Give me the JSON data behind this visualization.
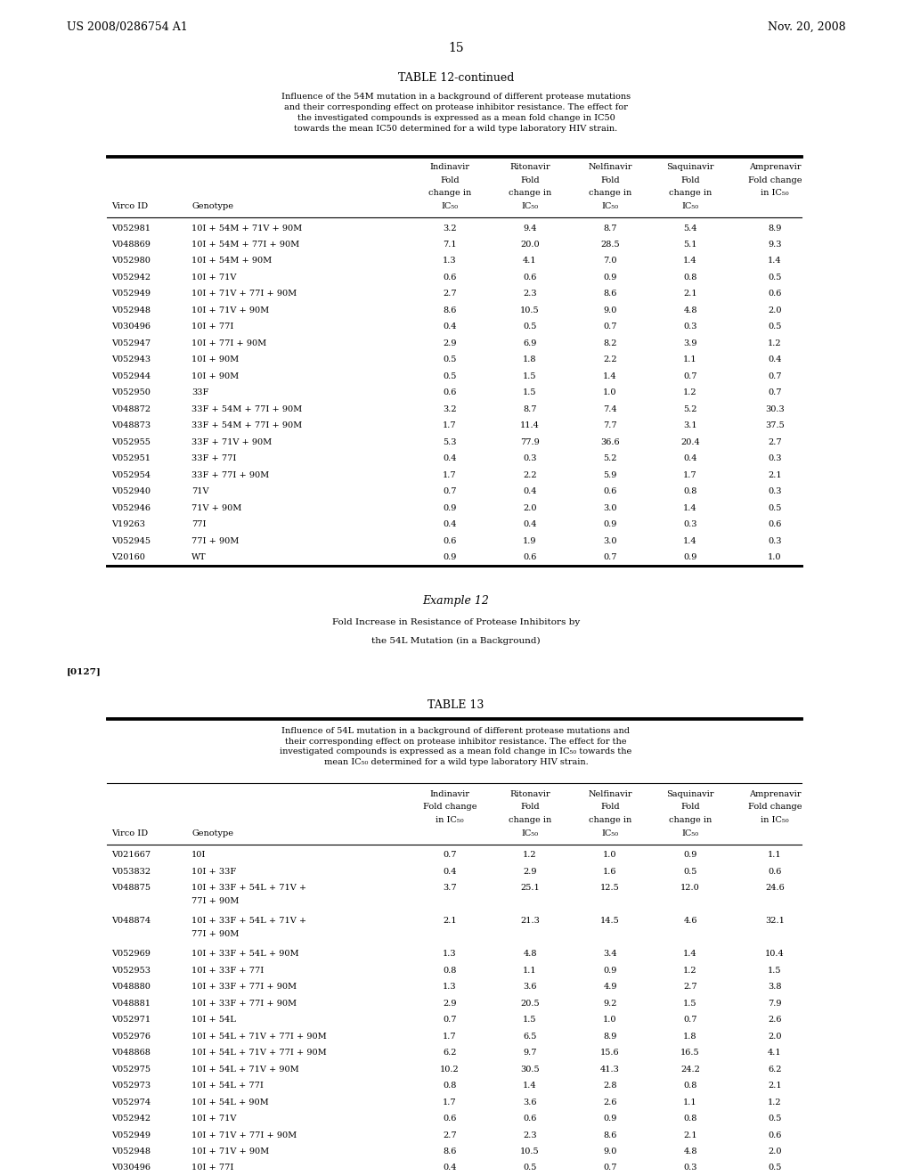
{
  "header_left": "US 2008/0286754 A1",
  "header_right": "Nov. 20, 2008",
  "page_number": "15",
  "table12_title": "TABLE 12-continued",
  "table12_caption": "Influence of the 54M mutation in a background of different protease mutations\nand their corresponding effect on protease inhibitor resistance. The effect for\nthe investigated compounds is expressed as a mean fold change in IC50\ntowards the mean IC50 determined for a wild type laboratory HIV strain.",
  "table12_col_headers": [
    "",
    "",
    "Indinavir\nFold\nchange in\nIC₅₀",
    "Ritonavir\nFold\nchange in\nIC₅₀",
    "Nelfinavir\nFold\nchange in\nIC₅₀",
    "Saquinavir\nFold\nchange in\nIC₅₀",
    "Amprenavir\nFold change\nin IC₅₀"
  ],
  "table12_sub_headers": [
    "Virco ID",
    "Genotype",
    "",
    "",
    "",
    "",
    ""
  ],
  "table12_data": [
    [
      "V052981",
      "10I + 54M + 71V + 90M",
      "3.2",
      "9.4",
      "8.7",
      "5.4",
      "8.9"
    ],
    [
      "V048869",
      "10I + 54M + 77I + 90M",
      "7.1",
      "20.0",
      "28.5",
      "5.1",
      "9.3"
    ],
    [
      "V052980",
      "10I + 54M + 90M",
      "1.3",
      "4.1",
      "7.0",
      "1.4",
      "1.4"
    ],
    [
      "V052942",
      "10I + 71V",
      "0.6",
      "0.6",
      "0.9",
      "0.8",
      "0.5"
    ],
    [
      "V052949",
      "10I + 71V + 77I + 90M",
      "2.7",
      "2.3",
      "8.6",
      "2.1",
      "0.6"
    ],
    [
      "V052948",
      "10I + 71V + 90M",
      "8.6",
      "10.5",
      "9.0",
      "4.8",
      "2.0"
    ],
    [
      "V030496",
      "10I + 77I",
      "0.4",
      "0.5",
      "0.7",
      "0.3",
      "0.5"
    ],
    [
      "V052947",
      "10I + 77I + 90M",
      "2.9",
      "6.9",
      "8.2",
      "3.9",
      "1.2"
    ],
    [
      "V052943",
      "10I + 90M",
      "0.5",
      "1.8",
      "2.2",
      "1.1",
      "0.4"
    ],
    [
      "V052944",
      "10I + 90M",
      "0.5",
      "1.5",
      "1.4",
      "0.7",
      "0.7"
    ],
    [
      "V052950",
      "33F",
      "0.6",
      "1.5",
      "1.0",
      "1.2",
      "0.7"
    ],
    [
      "V048872",
      "33F + 54M + 77I + 90M",
      "3.2",
      "8.7",
      "7.4",
      "5.2",
      "30.3"
    ],
    [
      "V048873",
      "33F + 54M + 77I + 90M",
      "1.7",
      "11.4",
      "7.7",
      "3.1",
      "37.5"
    ],
    [
      "V052955",
      "33F + 71V + 90M",
      "5.3",
      "77.9",
      "36.6",
      "20.4",
      "2.7"
    ],
    [
      "V052951",
      "33F + 77I",
      "0.4",
      "0.3",
      "5.2",
      "0.4",
      "0.3"
    ],
    [
      "V052954",
      "33F + 77I + 90M",
      "1.7",
      "2.2",
      "5.9",
      "1.7",
      "2.1"
    ],
    [
      "V052940",
      "71V",
      "0.7",
      "0.4",
      "0.6",
      "0.8",
      "0.3"
    ],
    [
      "V052946",
      "71V + 90M",
      "0.9",
      "2.0",
      "3.0",
      "1.4",
      "0.5"
    ],
    [
      "V19263",
      "77I",
      "0.4",
      "0.4",
      "0.9",
      "0.3",
      "0.6"
    ],
    [
      "V052945",
      "77I + 90M",
      "0.6",
      "1.9",
      "3.0",
      "1.4",
      "0.3"
    ],
    [
      "V20160",
      "WT",
      "0.9",
      "0.6",
      "0.7",
      "0.9",
      "1.0"
    ]
  ],
  "example12_title": "Example 12",
  "example12_text": "Fold Increase in Resistance of Protease Inhibitors by\nthe 54L Mutation (in a Background)",
  "paragraph_ref": "[0127]",
  "table13_title": "TABLE 13",
  "table13_caption": "Influence of 54L mutation in a background of different protease mutations and\ntheir corresponding effect on protease inhibitor resistance. The effect for the\ninvestigated compounds is expressed as a mean fold change in IC₅₀ towards the\nmean IC₅₀ determined for a wild type laboratory HIV strain.",
  "table13_col_headers": [
    "",
    "",
    "Indinavir\nFold change\nin IC₅₀",
    "Ritonavir\nFold\nchange in\nIC₅₀",
    "Nelfinavir\nFold\nchange in\nIC₅₀",
    "Saquinavir\nFold\nchange in\nIC₅₀",
    "Amprenavir\nFold change\nin IC₅₀"
  ],
  "table13_sub_headers": [
    "Virco ID",
    "Genotype",
    "",
    "",
    "",
    "",
    ""
  ],
  "table13_data": [
    [
      "V021667",
      "10I",
      "0.7",
      "1.2",
      "1.0",
      "0.9",
      "1.1"
    ],
    [
      "V053832",
      "10I + 33F",
      "0.4",
      "2.9",
      "1.6",
      "0.5",
      "0.6"
    ],
    [
      "V048875",
      "10I + 33F + 54L + 71V +\n77I + 90M",
      "3.7",
      "25.1",
      "12.5",
      "12.0",
      "24.6"
    ],
    [
      "V048874",
      "10I + 33F + 54L + 71V +\n77I + 90M",
      "2.1",
      "21.3",
      "14.5",
      "4.6",
      "32.1"
    ],
    [
      "V052969",
      "10I + 33F + 54L + 90M",
      "1.3",
      "4.8",
      "3.4",
      "1.4",
      "10.4"
    ],
    [
      "V052953",
      "10I + 33F + 77I",
      "0.8",
      "1.1",
      "0.9",
      "1.2",
      "1.5"
    ],
    [
      "V048880",
      "10I + 33F + 77I + 90M",
      "1.3",
      "3.6",
      "4.9",
      "2.7",
      "3.8"
    ],
    [
      "V048881",
      "10I + 33F + 77I + 90M",
      "2.9",
      "20.5",
      "9.2",
      "1.5",
      "7.9"
    ],
    [
      "V052971",
      "10I + 54L",
      "0.7",
      "1.5",
      "1.0",
      "0.7",
      "2.6"
    ],
    [
      "V052976",
      "10I + 54L + 71V + 77I + 90M",
      "1.7",
      "6.5",
      "8.9",
      "1.8",
      "2.0"
    ],
    [
      "V048868",
      "10I + 54L + 71V + 77I + 90M",
      "6.2",
      "9.7",
      "15.6",
      "16.5",
      "4.1"
    ],
    [
      "V052975",
      "10I + 54L + 71V + 90M",
      "10.2",
      "30.5",
      "41.3",
      "24.2",
      "6.2"
    ],
    [
      "V052973",
      "10I + 54L + 77I",
      "0.8",
      "1.4",
      "2.8",
      "0.8",
      "2.1"
    ],
    [
      "V052974",
      "10I + 54L + 90M",
      "1.7",
      "3.6",
      "2.6",
      "1.1",
      "1.2"
    ],
    [
      "V052942",
      "10I + 71V",
      "0.6",
      "0.6",
      "0.9",
      "0.8",
      "0.5"
    ],
    [
      "V052949",
      "10I + 71V + 77I + 90M",
      "2.7",
      "2.3",
      "8.6",
      "2.1",
      "0.6"
    ],
    [
      "V052948",
      "10I + 71V + 90M",
      "8.6",
      "10.5",
      "9.0",
      "4.8",
      "2.0"
    ],
    [
      "V030496",
      "10I + 77I",
      "0.4",
      "0.5",
      "0.7",
      "0.3",
      "0.5"
    ],
    [
      "V052947",
      "10I + 77I + 90M",
      "2.9",
      "6.9",
      "8.2",
      "3.9",
      "1.2"
    ]
  ],
  "bg_color": "#ffffff",
  "text_color": "#000000",
  "font_size": 7.5,
  "small_font_size": 7.0
}
